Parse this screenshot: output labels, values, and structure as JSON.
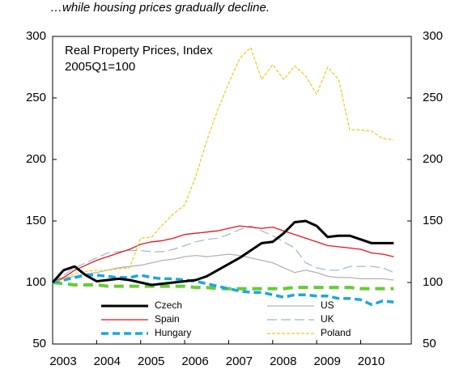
{
  "chart_data": {
    "type": "line",
    "title": "…while housing prices  gradually decline.",
    "annotations": [
      "Real Property Prices, Index",
      "2005Q1=100"
    ],
    "x": [
      2003,
      2003.25,
      2003.5,
      2003.75,
      2004,
      2004.25,
      2004.5,
      2004.75,
      2005,
      2005.25,
      2005.5,
      2005.75,
      2006,
      2006.25,
      2006.5,
      2006.75,
      2007,
      2007.25,
      2007.5,
      2007.75,
      2008,
      2008.25,
      2008.5,
      2008.75,
      2009,
      2009.25,
      2009.5,
      2009.75,
      2010,
      2010.25,
      2010.5,
      2010.75
    ],
    "series": [
      {
        "name": "Czech",
        "color": "#000000",
        "values": [
          100,
          110,
          113,
          106,
          101,
          102,
          103,
          102,
          100,
          98,
          99,
          100,
          101,
          102,
          105,
          110,
          115,
          120,
          126,
          132,
          133,
          140,
          149,
          150,
          146,
          137,
          138,
          138,
          135,
          132,
          132,
          132
        ]
      },
      {
        "name": "Spain",
        "color": "#e8141b",
        "values": [
          100,
          104,
          110,
          114,
          118,
          121,
          124,
          127,
          131,
          133,
          134,
          136,
          139,
          140,
          141,
          142,
          144,
          146,
          145,
          144,
          145,
          142,
          139,
          136,
          133,
          130,
          129,
          128,
          127,
          124,
          123,
          121
        ]
      },
      {
        "name": "Hungary",
        "color": "#1ca8e0",
        "values": [
          100,
          102,
          104,
          106,
          106,
          105,
          104,
          104,
          106,
          104,
          103,
          103,
          102,
          101,
          99,
          97,
          95,
          93,
          92,
          92,
          90,
          88,
          90,
          90,
          89,
          89,
          87,
          87,
          86,
          82,
          85,
          84
        ]
      },
      {
        "name": "US",
        "color": "#b3b3b3",
        "values": [
          100,
          103,
          105,
          107,
          108,
          110,
          112,
          113,
          114,
          116,
          118,
          119,
          121,
          122,
          121,
          122,
          123,
          122,
          120,
          118,
          116,
          112,
          108,
          110,
          108,
          105,
          104,
          104,
          103,
          103,
          103,
          102
        ]
      },
      {
        "name": "UK",
        "color": "#9bb7d4",
        "values": [
          100,
          106,
          112,
          116,
          120,
          124,
          125,
          126,
          126,
          125,
          125,
          127,
          130,
          133,
          135,
          136,
          139,
          143,
          146,
          142,
          138,
          133,
          128,
          116,
          112,
          110,
          110,
          113,
          113,
          113,
          112,
          108
        ]
      },
      {
        "name": "Poland",
        "color": "#f5c518",
        "values": [
          100,
          103,
          107,
          109,
          110,
          110,
          111,
          112,
          136,
          137,
          147,
          156,
          163,
          186,
          215,
          240,
          262,
          282,
          291,
          265,
          277,
          265,
          276,
          268,
          253,
          275,
          265,
          224,
          224,
          223,
          217,
          216
        ]
      },
      {
        "name": null,
        "color": "#66cc33",
        "values": [
          100,
          99,
          98,
          98,
          98,
          97,
          97,
          97,
          97,
          97,
          97,
          97,
          97,
          96,
          96,
          95,
          95,
          95,
          95,
          95,
          95,
          95,
          96,
          96,
          96,
          96,
          96,
          96,
          95,
          95,
          95,
          95
        ]
      }
    ],
    "xlim": [
      2003,
      2011.15
    ],
    "xticks": [
      2003,
      2004,
      2005,
      2006,
      2007,
      2008,
      2009,
      2010
    ],
    "ylim": [
      50,
      300
    ],
    "yticks": [
      50,
      100,
      150,
      200,
      250,
      300
    ],
    "y2lim": [
      50,
      300
    ],
    "y2ticks": [
      50,
      100,
      150,
      200,
      250,
      300
    ]
  }
}
